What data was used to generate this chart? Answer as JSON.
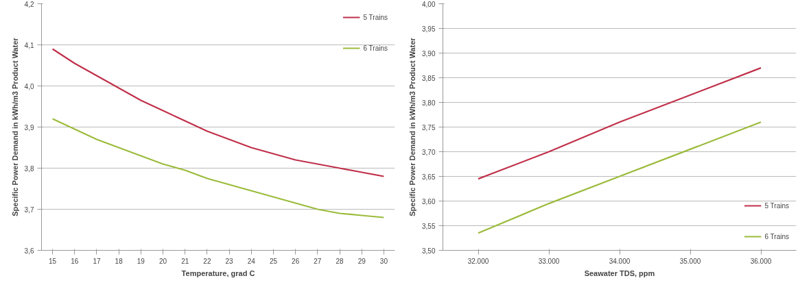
{
  "chart_data": [
    {
      "type": "line",
      "xlabel": "Temperature, grad C",
      "ylabel": "Specific Power Demand in kWh/m3 Product Water",
      "categories": [
        "15",
        "16",
        "17",
        "18",
        "19",
        "20",
        "21",
        "22",
        "23",
        "24",
        "25",
        "26",
        "27",
        "28",
        "29",
        "30"
      ],
      "series": [
        {
          "name": "5 Trains",
          "color": "#c0304a",
          "values": [
            4.09,
            4.055,
            4.025,
            3.995,
            3.965,
            3.94,
            3.915,
            3.89,
            3.87,
            3.85,
            3.835,
            3.82,
            3.81,
            3.8,
            3.79,
            3.78
          ]
        },
        {
          "name": "6 Trains",
          "color": "#9bbb3b",
          "values": [
            3.92,
            3.895,
            3.87,
            3.85,
            3.83,
            3.81,
            3.795,
            3.775,
            3.76,
            3.745,
            3.73,
            3.715,
            3.7,
            3.69,
            3.685,
            3.68
          ]
        }
      ],
      "ylim": [
        3.6,
        4.2
      ],
      "yticks": [
        {
          "value": 3.6,
          "label": "3,6"
        },
        {
          "value": 3.7,
          "label": "3,7"
        },
        {
          "value": 3.8,
          "label": "3,8"
        },
        {
          "value": 3.9,
          "label": "3,9"
        },
        {
          "value": 4.0,
          "label": "4,0"
        },
        {
          "value": 4.1,
          "label": "4,1"
        },
        {
          "value": 4.2,
          "label": "4,2"
        }
      ],
      "grid": "y",
      "legend": "top right",
      "marker": "none",
      "line_style": "solid"
    },
    {
      "type": "line",
      "xlabel": "Seawater TDS, ppm",
      "ylabel": "Specific Power Demand in kWh/m3 Product Water",
      "categories": [
        "32.000",
        "33.000",
        "34.000",
        "35.000",
        "36.000"
      ],
      "series": [
        {
          "name": "5 Trains",
          "color": "#c0304a",
          "values": [
            3.645,
            3.7,
            3.76,
            3.815,
            3.87
          ]
        },
        {
          "name": "6 Trains",
          "color": "#9bbb3b",
          "values": [
            3.535,
            3.595,
            3.65,
            3.705,
            3.76
          ]
        }
      ],
      "ylim": [
        3.5,
        4.0
      ],
      "yticks": [
        {
          "value": 3.5,
          "label": "3,50"
        },
        {
          "value": 3.55,
          "label": "3,55"
        },
        {
          "value": 3.6,
          "label": "3,60"
        },
        {
          "value": 3.65,
          "label": "3,65"
        },
        {
          "value": 3.7,
          "label": "3,70"
        },
        {
          "value": 3.75,
          "label": "3,75"
        },
        {
          "value": 3.8,
          "label": "3,80"
        },
        {
          "value": 3.85,
          "label": "3,85"
        },
        {
          "value": 3.9,
          "label": "3,90"
        },
        {
          "value": 3.95,
          "label": "3,95"
        },
        {
          "value": 4.0,
          "label": "4,00"
        }
      ],
      "grid": "y",
      "legend": "bottom right",
      "marker": "none",
      "line_style": "solid"
    }
  ]
}
